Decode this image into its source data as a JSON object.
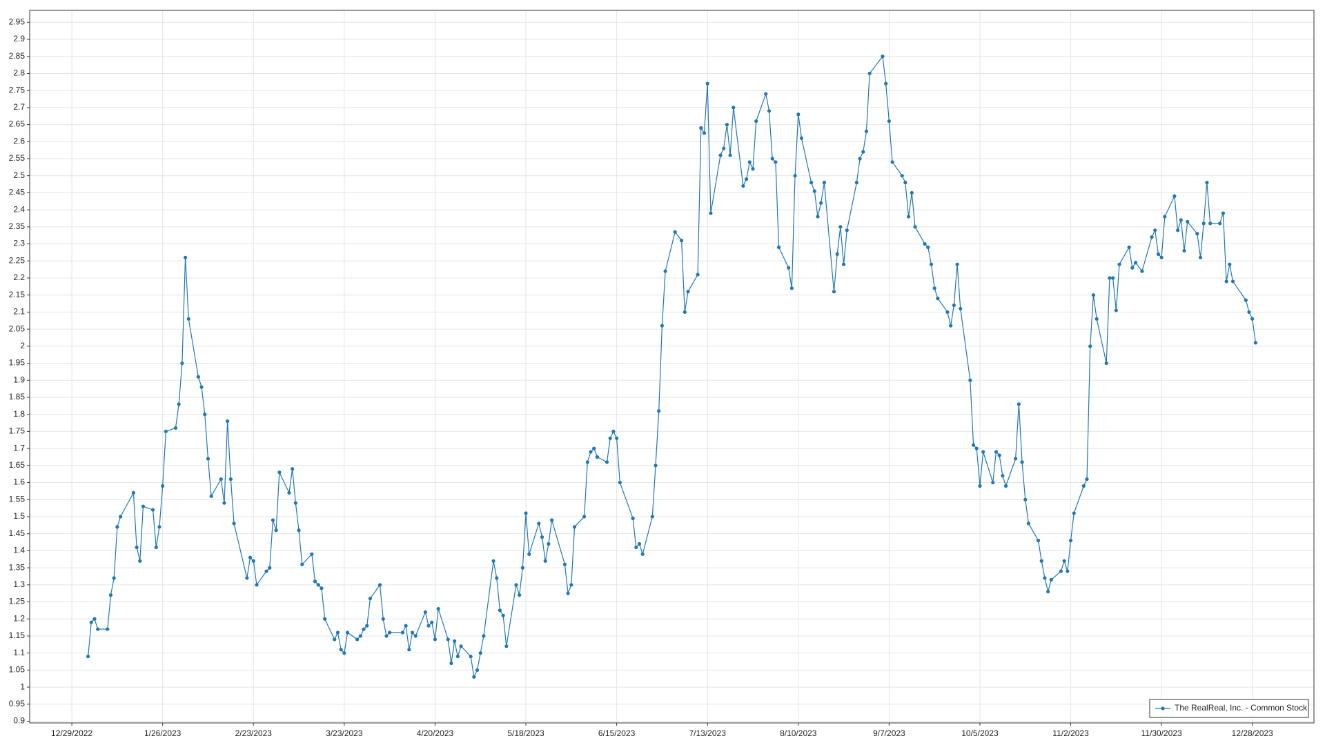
{
  "chart_data": {
    "type": "line",
    "xlim": [
      "12/16/2022",
      "1/16/2024"
    ],
    "xticks": [
      "12/29/2022",
      "1/26/2023",
      "2/23/2023",
      "3/23/2023",
      "4/20/2023",
      "5/18/2023",
      "6/15/2023",
      "7/13/2023",
      "8/10/2023",
      "9/7/2023",
      "10/5/2023",
      "11/2/2023",
      "11/30/2023",
      "12/28/2023"
    ],
    "ylim": [
      0.895,
      2.985
    ],
    "yticks": [
      0.9,
      0.95,
      1,
      1.05,
      1.1,
      1.15,
      1.2,
      1.25,
      1.3,
      1.35,
      1.4,
      1.45,
      1.5,
      1.55,
      1.6,
      1.65,
      1.7,
      1.75,
      1.8,
      1.85,
      1.9,
      1.95,
      2,
      2.05,
      2.1,
      2.15,
      2.2,
      2.25,
      2.3,
      2.35,
      2.4,
      2.45,
      2.5,
      2.55,
      2.6,
      2.65,
      2.7,
      2.75,
      2.8,
      2.85,
      2.9,
      2.95
    ],
    "grid": true,
    "legend": "lower right",
    "x": [
      "1/3/2023",
      "1/4/2023",
      "1/5/2023",
      "1/6/2023",
      "1/9/2023",
      "1/10/2023",
      "1/11/2023",
      "1/12/2023",
      "1/13/2023",
      "1/17/2023",
      "1/18/2023",
      "1/19/2023",
      "1/20/2023",
      "1/23/2023",
      "1/24/2023",
      "1/25/2023",
      "1/26/2023",
      "1/27/2023",
      "1/30/2023",
      "1/31/2023",
      "2/1/2023",
      "2/2/2023",
      "2/3/2023",
      "2/6/2023",
      "2/7/2023",
      "2/8/2023",
      "2/9/2023",
      "2/10/2023",
      "2/13/2023",
      "2/14/2023",
      "2/15/2023",
      "2/16/2023",
      "2/17/2023",
      "2/21/2023",
      "2/22/2023",
      "2/23/2023",
      "2/24/2023",
      "2/27/2023",
      "2/28/2023",
      "3/1/2023",
      "3/2/2023",
      "3/3/2023",
      "3/6/2023",
      "3/7/2023",
      "3/8/2023",
      "3/9/2023",
      "3/10/2023",
      "3/13/2023",
      "3/14/2023",
      "3/15/2023",
      "3/16/2023",
      "3/17/2023",
      "3/20/2023",
      "3/21/2023",
      "3/22/2023",
      "3/23/2023",
      "3/24/2023",
      "3/27/2023",
      "3/28/2023",
      "3/29/2023",
      "3/30/2023",
      "3/31/2023",
      "4/3/2023",
      "4/4/2023",
      "4/5/2023",
      "4/6/2023",
      "4/10/2023",
      "4/11/2023",
      "4/12/2023",
      "4/13/2023",
      "4/14/2023",
      "4/17/2023",
      "4/18/2023",
      "4/19/2023",
      "4/20/2023",
      "4/21/2023",
      "4/24/2023",
      "4/25/2023",
      "4/26/2023",
      "4/27/2023",
      "4/28/2023",
      "5/1/2023",
      "5/2/2023",
      "5/3/2023",
      "5/4/2023",
      "5/5/2023",
      "5/8/2023",
      "5/9/2023",
      "5/10/2023",
      "5/11/2023",
      "5/12/2023",
      "5/15/2023",
      "5/16/2023",
      "5/17/2023",
      "5/18/2023",
      "5/19/2023",
      "5/22/2023",
      "5/23/2023",
      "5/24/2023",
      "5/25/2023",
      "5/26/2023",
      "5/30/2023",
      "5/31/2023",
      "6/1/2023",
      "6/2/2023",
      "6/5/2023",
      "6/6/2023",
      "6/7/2023",
      "6/8/2023",
      "6/9/2023",
      "6/12/2023",
      "6/13/2023",
      "6/14/2023",
      "6/15/2023",
      "6/16/2023",
      "6/20/2023",
      "6/21/2023",
      "6/22/2023",
      "6/23/2023",
      "6/26/2023",
      "6/27/2023",
      "6/28/2023",
      "6/29/2023",
      "6/30/2023",
      "7/3/2023",
      "7/5/2023",
      "7/6/2023",
      "7/7/2023",
      "7/10/2023",
      "7/11/2023",
      "7/12/2023",
      "7/13/2023",
      "7/14/2023",
      "7/17/2023",
      "7/18/2023",
      "7/19/2023",
      "7/20/2023",
      "7/21/2023",
      "7/24/2023",
      "7/25/2023",
      "7/26/2023",
      "7/27/2023",
      "7/28/2023",
      "7/31/2023",
      "8/1/2023",
      "8/2/2023",
      "8/3/2023",
      "8/4/2023",
      "8/7/2023",
      "8/8/2023",
      "8/9/2023",
      "8/10/2023",
      "8/11/2023",
      "8/14/2023",
      "8/15/2023",
      "8/16/2023",
      "8/17/2023",
      "8/18/2023",
      "8/21/2023",
      "8/22/2023",
      "8/23/2023",
      "8/24/2023",
      "8/25/2023",
      "8/28/2023",
      "8/29/2023",
      "8/30/2023",
      "8/31/2023",
      "9/1/2023",
      "9/5/2023",
      "9/6/2023",
      "9/7/2023",
      "9/8/2023",
      "9/11/2023",
      "9/12/2023",
      "9/13/2023",
      "9/14/2023",
      "9/15/2023",
      "9/18/2023",
      "9/19/2023",
      "9/20/2023",
      "9/21/2023",
      "9/22/2023",
      "9/25/2023",
      "9/26/2023",
      "9/27/2023",
      "9/28/2023",
      "9/29/2023",
      "10/2/2023",
      "10/3/2023",
      "10/4/2023",
      "10/5/2023",
      "10/6/2023",
      "10/9/2023",
      "10/10/2023",
      "10/11/2023",
      "10/12/2023",
      "10/13/2023",
      "10/16/2023",
      "10/17/2023",
      "10/18/2023",
      "10/19/2023",
      "10/20/2023",
      "10/23/2023",
      "10/24/2023",
      "10/25/2023",
      "10/26/2023",
      "10/27/2023",
      "10/30/2023",
      "10/31/2023",
      "11/1/2023",
      "11/2/2023",
      "11/3/2023",
      "11/6/2023",
      "11/7/2023",
      "11/8/2023",
      "11/9/2023",
      "11/10/2023",
      "11/13/2023",
      "11/14/2023",
      "11/15/2023",
      "11/16/2023",
      "11/17/2023",
      "11/20/2023",
      "11/21/2023",
      "11/22/2023",
      "11/24/2023",
      "11/27/2023",
      "11/28/2023",
      "11/29/2023",
      "11/30/2023",
      "12/1/2023",
      "12/4/2023",
      "12/5/2023",
      "12/6/2023",
      "12/7/2023",
      "12/8/2023",
      "12/11/2023",
      "12/12/2023",
      "12/13/2023",
      "12/14/2023",
      "12/15/2023",
      "12/18/2023",
      "12/19/2023",
      "12/20/2023",
      "12/21/2023",
      "12/22/2023",
      "12/26/2023",
      "12/27/2023",
      "12/28/2023",
      "12/29/2023"
    ],
    "series": [
      {
        "name": "The RealReal, Inc. - Common Stock",
        "color": "#1f77b4",
        "values": [
          1.09,
          1.19,
          1.2,
          1.17,
          1.17,
          1.27,
          1.32,
          1.47,
          1.5,
          1.57,
          1.41,
          1.37,
          1.53,
          1.52,
          1.41,
          1.47,
          1.59,
          1.75,
          1.76,
          1.83,
          1.95,
          2.26,
          2.08,
          1.91,
          1.88,
          1.8,
          1.67,
          1.56,
          1.61,
          1.54,
          1.78,
          1.61,
          1.48,
          1.32,
          1.38,
          1.37,
          1.3,
          1.34,
          1.35,
          1.49,
          1.46,
          1.63,
          1.57,
          1.64,
          1.54,
          1.46,
          1.36,
          1.39,
          1.31,
          1.3,
          1.29,
          1.2,
          1.14,
          1.16,
          1.11,
          1.1,
          1.16,
          1.14,
          1.15,
          1.17,
          1.18,
          1.26,
          1.3,
          1.2,
          1.15,
          1.16,
          1.16,
          1.18,
          1.11,
          1.16,
          1.15,
          1.22,
          1.18,
          1.19,
          1.14,
          1.23,
          1.14,
          1.07,
          1.135,
          1.09,
          1.12,
          1.09,
          1.03,
          1.05,
          1.1,
          1.15,
          1.37,
          1.32,
          1.225,
          1.21,
          1.12,
          1.3,
          1.27,
          1.35,
          1.51,
          1.39,
          1.48,
          1.44,
          1.37,
          1.42,
          1.49,
          1.36,
          1.275,
          1.3,
          1.47,
          1.5,
          1.66,
          1.69,
          1.7,
          1.675,
          1.66,
          1.73,
          1.75,
          1.73,
          1.6,
          1.495,
          1.41,
          1.42,
          1.39,
          1.5,
          1.65,
          1.81,
          2.06,
          2.22,
          2.335,
          2.31,
          2.1,
          2.16,
          2.21,
          2.64,
          2.625,
          2.77,
          2.39,
          2.56,
          2.58,
          2.65,
          2.56,
          2.7,
          2.47,
          2.49,
          2.54,
          2.52,
          2.66,
          2.74,
          2.69,
          2.55,
          2.54,
          2.29,
          2.23,
          2.17,
          2.5,
          2.68,
          2.61,
          2.48,
          2.455,
          2.38,
          2.42,
          2.48,
          2.16,
          2.27,
          2.35,
          2.24,
          2.34,
          2.48,
          2.55,
          2.57,
          2.63,
          2.8,
          2.85,
          2.77,
          2.66,
          2.54,
          2.5,
          2.48,
          2.38,
          2.45,
          2.35,
          2.3,
          2.29,
          2.24,
          2.17,
          2.14,
          2.1,
          2.06,
          2.12,
          2.24,
          2.11,
          1.9,
          1.71,
          1.7,
          1.59,
          1.69,
          1.6,
          1.69,
          1.68,
          1.62,
          1.59,
          1.67,
          1.83,
          1.66,
          1.55,
          1.48,
          1.43,
          1.37,
          1.32,
          1.28,
          1.315,
          1.34,
          1.37,
          1.34,
          1.43,
          1.51,
          1.59,
          1.61,
          2,
          2.15,
          2.08,
          1.95,
          2.2,
          2.2,
          2.105,
          2.24,
          2.29,
          2.23,
          2.245,
          2.22,
          2.32,
          2.34,
          2.27,
          2.26,
          2.38,
          2.44,
          2.34,
          2.37,
          2.28,
          2.365,
          2.33,
          2.26,
          2.36,
          2.48,
          2.36,
          2.36,
          2.39,
          2.19,
          2.24,
          2.19,
          2.135,
          2.1,
          2.08,
          2.01
        ]
      }
    ]
  }
}
